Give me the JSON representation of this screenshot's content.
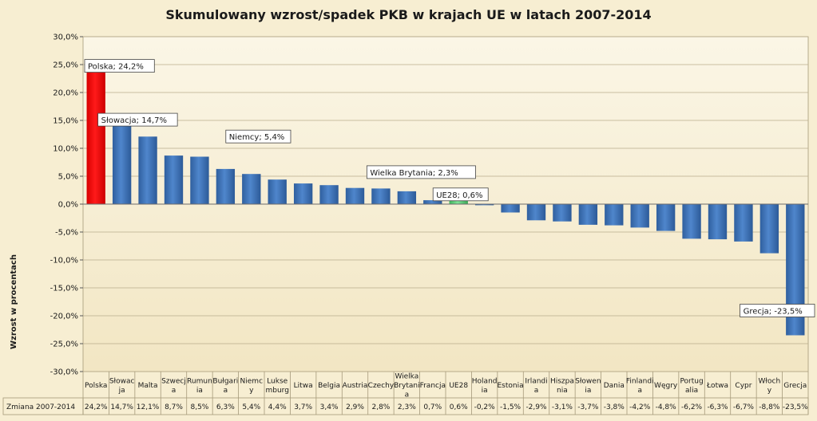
{
  "chart_data": {
    "type": "bar",
    "title": "Skumulowany wzrost/spadek PKB w krajach UE w latach 2007-2014",
    "ylabel": "Wzrost w procentach",
    "xlabel": "",
    "ylim": [
      -30,
      30
    ],
    "ytick_step": 5,
    "ytick_labels": [
      "30,0%",
      "25,0%",
      "20,0%",
      "15,0%",
      "10,0%",
      "5,0%",
      "0,0%",
      "-5,0%",
      "-10,0%",
      "-15,0%",
      "-20,0%",
      "-25,0%",
      "-30,0%"
    ],
    "grid": true,
    "legend": "none",
    "categories": [
      "Polska",
      "Słowacja",
      "Malta",
      "Szwecja",
      "Rumunia",
      "Bułgaria",
      "Niemcy",
      "Luksemburg",
      "Litwa",
      "Belgia",
      "Austria",
      "Czechy",
      "Wielka Brytania",
      "Francja",
      "UE28",
      "Holandia",
      "Estonia",
      "Irlandia",
      "Hiszpania",
      "Słowenia",
      "Dania",
      "Finlandia",
      "Węgry",
      "Portugalia",
      "Łotwa",
      "Cypr",
      "Włochy",
      "Grecja"
    ],
    "category_label_lines": [
      [
        "Polska"
      ],
      [
        "Słowac",
        "ja"
      ],
      [
        "Malta"
      ],
      [
        "Szwecj",
        "a"
      ],
      [
        "Rumun",
        "ia"
      ],
      [
        "Bułgari",
        "a"
      ],
      [
        "Niemc",
        "y"
      ],
      [
        "Lukse",
        "mburg"
      ],
      [
        "Litwa"
      ],
      [
        "Belgia"
      ],
      [
        "Austria"
      ],
      [
        "Czechy"
      ],
      [
        "Wielka",
        "Brytani",
        "a"
      ],
      [
        "Francja"
      ],
      [
        "UE28"
      ],
      [
        "Holand",
        "ia"
      ],
      [
        "Estonia"
      ],
      [
        "Irlandi",
        "a"
      ],
      [
        "Hiszpa",
        "nia"
      ],
      [
        "Słowen",
        "ia"
      ],
      [
        "Dania"
      ],
      [
        "Finlandi",
        "a"
      ],
      [
        "Węgry"
      ],
      [
        "Portug",
        "alia"
      ],
      [
        "Łotwa"
      ],
      [
        "Cypr"
      ],
      [
        "Włoch",
        "y"
      ],
      [
        "Grecja"
      ]
    ],
    "values": [
      24.2,
      14.7,
      12.1,
      8.7,
      8.5,
      6.3,
      5.4,
      4.4,
      3.7,
      3.4,
      2.9,
      2.8,
      2.3,
      0.7,
      0.6,
      -0.2,
      -1.5,
      -2.9,
      -3.1,
      -3.7,
      -3.8,
      -4.2,
      -4.8,
      -6.2,
      -6.3,
      -6.7,
      -8.8,
      -23.5
    ],
    "table_row_label": "Zmiana 2007-2014",
    "table_values": [
      "24,2%",
      "14,7%",
      "12,1%",
      "8,7%",
      "8,5%",
      "6,3%",
      "5,4%",
      "4,4%",
      "3,7%",
      "3,4%",
      "2,9%",
      "2,8%",
      "2,3%",
      "0,7%",
      "0,6%",
      "-0,2%",
      "-1,5%",
      "-2,9%",
      "-3,1%",
      "-3,7%",
      "-3,8%",
      "-4,2%",
      "-4,8%",
      "-6,2%",
      "-6,3%",
      "-6,7%",
      "-8,8%",
      "-23,5%"
    ],
    "highlight": {
      "Polska": "#ff0000",
      "UE28": "#5fd07a"
    },
    "bar_color": "#3d72b8",
    "annotations": [
      {
        "category": "Polska",
        "text": "Polska; 24,2%"
      },
      {
        "category": "Słowacja",
        "text": "Słowacja; 14,7%"
      },
      {
        "category": "Niemcy",
        "text": "Niemcy; 5,4%"
      },
      {
        "category": "Wielka Brytania",
        "text": "Wielka Brytania; 2,3%"
      },
      {
        "category": "UE28",
        "text": "UE28; 0,6%"
      },
      {
        "category": "Grecja",
        "text": "Grecja; -23,5%"
      }
    ]
  }
}
